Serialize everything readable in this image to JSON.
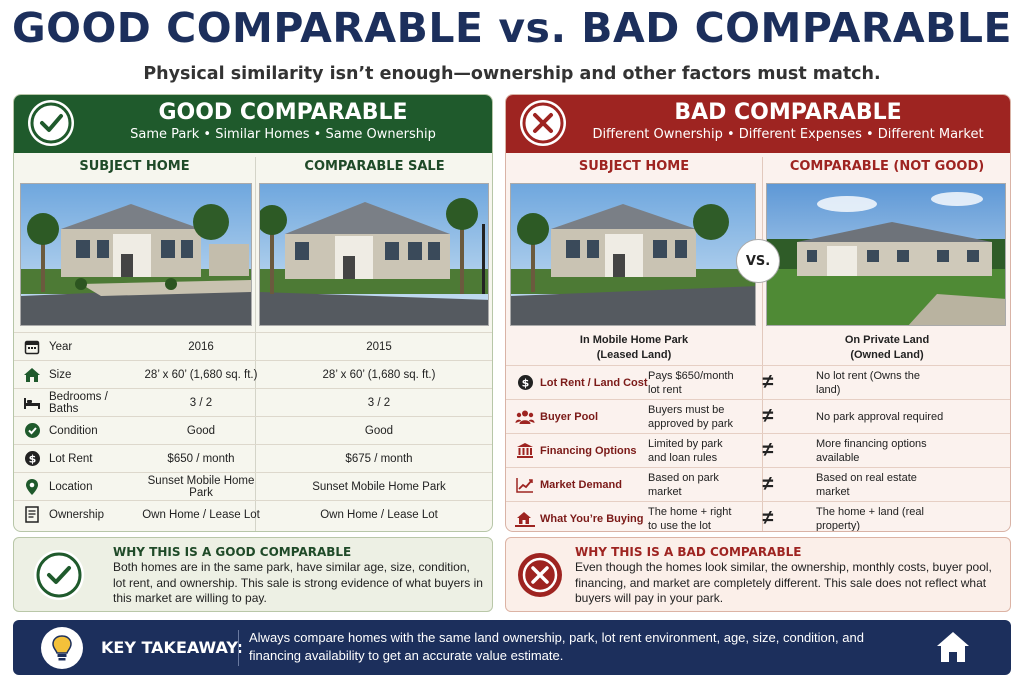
{
  "title": "GOOD COMPARABLE vs. BAD COMPARABLE",
  "subtitle": "Physical similarity isn’t enough—ownership and other factors must match.",
  "good": {
    "title": "GOOD COMPARABLE",
    "subtitle": "Same Park • Similar Homes • Same Ownership",
    "col1": "SUBJECT HOME",
    "col2": "COMPARABLE SALE",
    "rows": [
      {
        "icon": "calendar-icon",
        "label": "Year",
        "v1": "2016",
        "v2": "2015"
      },
      {
        "icon": "house-icon",
        "label": "Size",
        "v1": "28’ x 60’ (1,680 sq. ft.)",
        "v2": "28’ x 60’ (1,680 sq. ft.)"
      },
      {
        "icon": "bed-icon",
        "label": "Bedrooms / Baths",
        "v1": "3 / 2",
        "v2": "3 / 2"
      },
      {
        "icon": "check-circle-icon",
        "label": "Condition",
        "v1": "Good",
        "v2": "Good"
      },
      {
        "icon": "dollar-icon",
        "label": "Lot Rent",
        "v1": "$650 / month",
        "v2": "$675 / month"
      },
      {
        "icon": "location-pin-icon",
        "label": "Location",
        "v1": "Sunset Mobile Home Park",
        "v2": "Sunset Mobile Home Park"
      },
      {
        "icon": "document-icon",
        "label": "Ownership",
        "v1": "Own Home / Lease Lot",
        "v2": "Own Home / Lease Lot"
      }
    ],
    "why_title": "WHY THIS IS A GOOD COMPARABLE",
    "why_body": "Both homes are in the same park, have similar age, size, condition, lot rent, and ownership. This sale is strong evidence of what buyers in this market are willing to pay."
  },
  "bad": {
    "title": "BAD COMPARABLE",
    "subtitle": "Different Ownership • Different Expenses • Different Market",
    "col1": "SUBJECT HOME",
    "col2": "COMPARABLE (NOT GOOD)",
    "vs": "VS.",
    "loc1": "In Mobile Home Park\n(Leased Land)",
    "loc2": "On Private Land\n(Owned Land)",
    "neq": "≠",
    "rows": [
      {
        "icon": "dollar-icon",
        "label": "Lot Rent / Land Cost",
        "v1": "Pays $650/month lot rent",
        "v2": "No lot rent (Owns the land)"
      },
      {
        "icon": "people-icon",
        "label": "Buyer Pool",
        "v1": "Buyers must be approved by park",
        "v2": "No park approval required"
      },
      {
        "icon": "bank-icon",
        "label": "Financing Options",
        "v1": "Limited by park and loan rules",
        "v2": "More financing options available"
      },
      {
        "icon": "chart-icon",
        "label": "Market Demand",
        "v1": "Based on park market",
        "v2": "Based on real estate market"
      },
      {
        "icon": "house-land-icon",
        "label": "What You’re Buying",
        "v1": "The home + right to use the lot",
        "v2": "The home + land (real property)"
      }
    ],
    "why_title": "WHY THIS IS A BAD COMPARABLE",
    "why_body": "Even though the homes look similar, the ownership, monthly costs, buyer pool, financing, and market are completely different. This sale does not reflect what buyers will pay in your park."
  },
  "takeaway": {
    "title": "KEY TAKEAWAY:",
    "body": "Always compare homes with the same land ownership, park, lot rent environment, age, size, condition, and financing availability to get an accurate value estimate."
  },
  "colors": {
    "navy": "#1c2f5c",
    "green": "#1f5a2c",
    "red": "#9e2421"
  }
}
